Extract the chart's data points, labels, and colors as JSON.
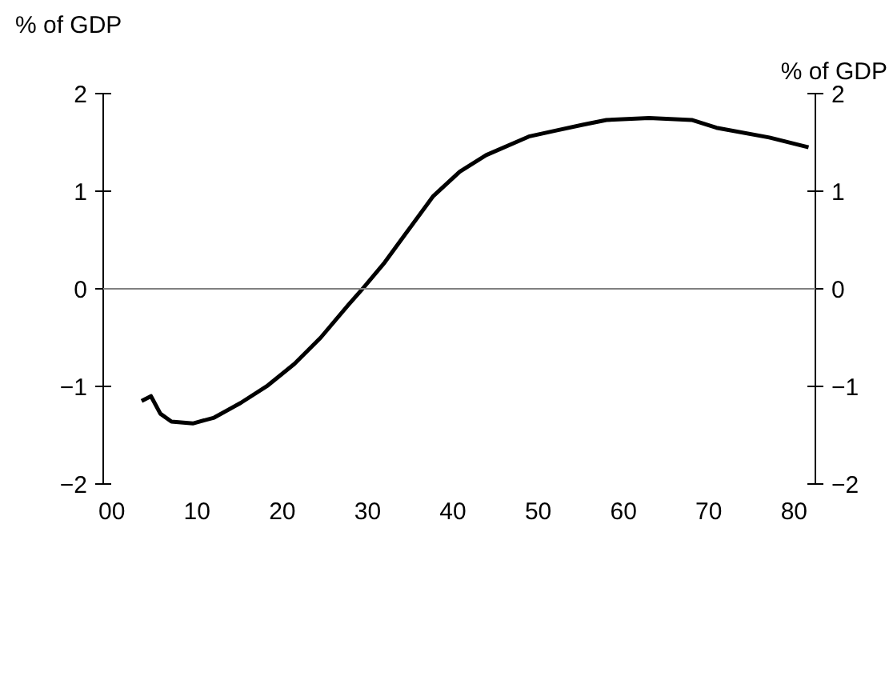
{
  "chart_data": {
    "type": "line",
    "ylabel": "% of GDP",
    "y2label": "% of GDP",
    "x": [
      3.5,
      4.6,
      5.7,
      7.0,
      9.5,
      12.0,
      15.1,
      18.3,
      21.4,
      24.5,
      27.7,
      29.5,
      32.0,
      34.5,
      37.7,
      40.8,
      43.9,
      48.9,
      52.0,
      55.2,
      58.0,
      63.0,
      68.0,
      70.9,
      77.1,
      81.7
    ],
    "series": [
      {
        "color": "#000000",
        "values": [
          -1.15,
          -1.1,
          -1.28,
          -1.36,
          -1.38,
          -1.32,
          -1.17,
          -0.99,
          -0.77,
          -0.5,
          -0.17,
          0.01,
          0.27,
          0.57,
          0.95,
          1.2,
          1.37,
          1.56,
          1.62,
          1.68,
          1.73,
          1.75,
          1.73,
          1.65,
          1.55,
          1.45
        ]
      }
    ],
    "xlim": [
      -1,
      82.5
    ],
    "xticks": [
      {
        "value": 0,
        "label": "00"
      },
      10,
      20,
      30,
      40,
      50,
      60,
      70,
      80
    ],
    "ylim": [
      -2,
      2
    ],
    "yticks": [
      -2,
      -1,
      0,
      1,
      2
    ],
    "y2lim": [
      -2,
      2
    ],
    "y2ticks": [
      -2,
      -1,
      0,
      1,
      2
    ],
    "ref_lines": [
      {
        "axis": "y",
        "value": 0,
        "color": "#808080"
      }
    ],
    "grid": false,
    "marker": "none",
    "line_style": "solid"
  }
}
